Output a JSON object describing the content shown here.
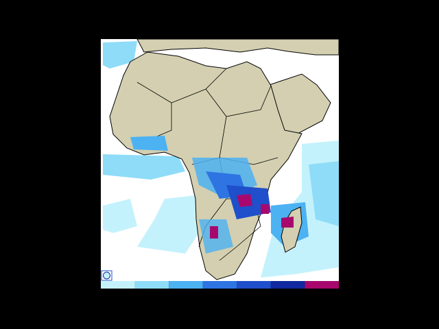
{
  "legend": {
    "colors": [
      "#c4f2fc",
      "#8edcf8",
      "#4cb2f2",
      "#2e74e2",
      "#1f4fca",
      "#12289e",
      "#a8086e"
    ]
  }
}
